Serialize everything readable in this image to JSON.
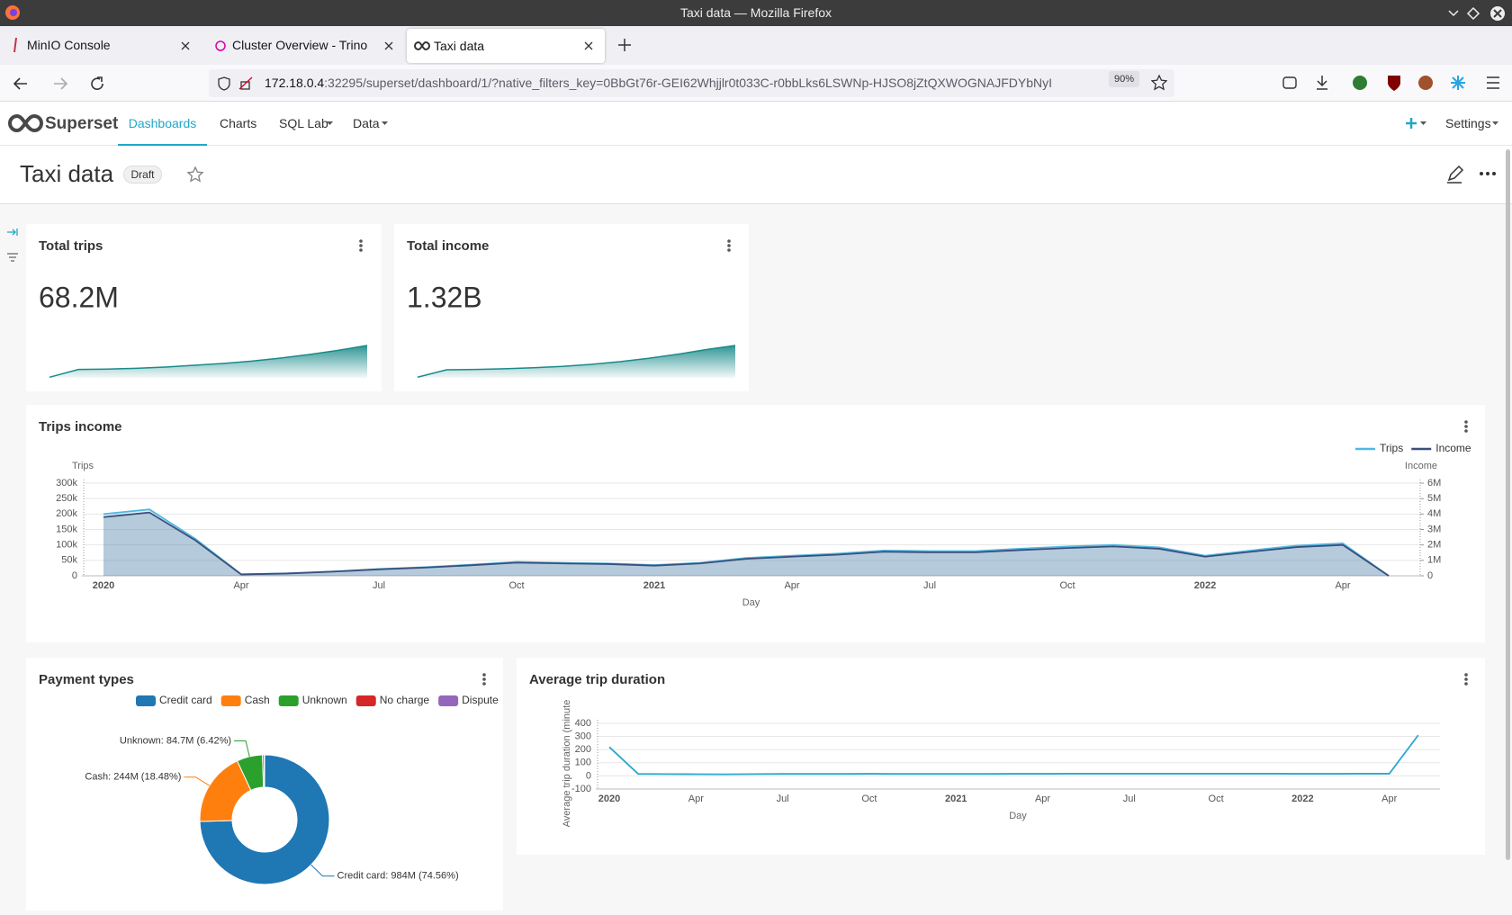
{
  "browser": {
    "window_title": "Taxi data — Mozilla Firefox",
    "tabs": [
      "MinIO Console",
      "Cluster Overview - Trino",
      "Taxi data"
    ],
    "url_host": "172.18.0.4",
    "url_rest": ":32295/superset/dashboard/1/?native_filters_key=0BbGt76r-GEI62Whjjlr0t033C-r0bbLks6LSWNp-HJSO8jZtQXWOGNAJFDYbNyI",
    "zoom": "90%"
  },
  "nav": {
    "brand": "Superset",
    "items": [
      "Dashboards",
      "Charts",
      "SQL Lab",
      "Data"
    ],
    "settings": "Settings"
  },
  "dashboard": {
    "title": "Taxi data",
    "status": "Draft"
  },
  "chart_data": [
    {
      "type": "big_number",
      "title": "Total trips",
      "value": 68200000,
      "value_label": "68.2M",
      "color": "#1a8a8a",
      "trendline": [
        0.5,
        7,
        7.3,
        8,
        9,
        10.5,
        12,
        14,
        16.5,
        19.5,
        23,
        27
      ]
    },
    {
      "type": "big_number",
      "title": "Total income",
      "value": 1320000000,
      "value_label": "1.32B",
      "color": "#1a8a8a",
      "trendline": [
        1,
        12,
        12.5,
        13.5,
        15,
        17,
        20,
        24,
        29,
        35,
        42,
        48
      ]
    },
    {
      "type": "line",
      "title": "Trips income",
      "area": true,
      "grid": true,
      "xlabel": "Day",
      "ylabel": "Trips",
      "y2label": "Income",
      "x": [
        "2020-01",
        "2020-02",
        "2020-03",
        "2020-04",
        "2020-05",
        "2020-06",
        "2020-07",
        "2020-08",
        "2020-09",
        "2020-10",
        "2020-11",
        "2020-12",
        "2021-01",
        "2021-02",
        "2021-03",
        "2021-04",
        "2021-05",
        "2021-06",
        "2021-07",
        "2021-08",
        "2021-09",
        "2021-10",
        "2021-11",
        "2021-12",
        "2022-01",
        "2022-02",
        "2022-03",
        "2022-04",
        "2022-05"
      ],
      "series": [
        {
          "name": "Trips",
          "color": "#4fb8e0",
          "values": [
            200000,
            215000,
            120000,
            5000,
            8000,
            14000,
            22000,
            28000,
            36000,
            45000,
            42000,
            40000,
            35000,
            42000,
            58000,
            65000,
            72000,
            82000,
            80000,
            80000,
            88000,
            95000,
            100000,
            92000,
            65000,
            82000,
            98000,
            105000,
            0
          ]
        },
        {
          "name": "Income",
          "color": "#3b4f7c",
          "axis": "y2",
          "values": [
            3800000,
            4100000,
            2300000,
            90000,
            150000,
            270000,
            420000,
            530000,
            680000,
            850000,
            800000,
            760000,
            660000,
            800000,
            1100000,
            1240000,
            1370000,
            1560000,
            1520000,
            1520000,
            1670000,
            1800000,
            1900000,
            1750000,
            1240000,
            1560000,
            1860000,
            2000000,
            0
          ]
        }
      ],
      "ylim": [
        0,
        300000
      ],
      "yticks": [
        0,
        {
          "value": 50000,
          "label": "50k"
        },
        {
          "value": 100000,
          "label": "100k"
        },
        {
          "value": 150000,
          "label": "150k"
        },
        {
          "value": 200000,
          "label": "200k"
        },
        {
          "value": 250000,
          "label": "250k"
        },
        {
          "value": 300000,
          "label": "300k"
        }
      ],
      "y2lim": [
        0,
        6000000
      ],
      "y2ticks": [
        0,
        {
          "value": 1000000,
          "label": "1M"
        },
        {
          "value": 2000000,
          "label": "2M"
        },
        {
          "value": 3000000,
          "label": "3M"
        },
        {
          "value": 4000000,
          "label": "4M"
        },
        {
          "value": 5000000,
          "label": "5M"
        },
        {
          "value": 6000000,
          "label": "6M"
        }
      ],
      "xticks": [
        {
          "value": "2020-01",
          "label": "2020"
        },
        {
          "value": "2020-04",
          "label": "Apr"
        },
        {
          "value": "2020-07",
          "label": "Jul"
        },
        {
          "value": "2020-10",
          "label": "Oct"
        },
        {
          "value": "2021-01",
          "label": "2021"
        },
        {
          "value": "2021-04",
          "label": "Apr"
        },
        {
          "value": "2021-07",
          "label": "Jul"
        },
        {
          "value": "2021-10",
          "label": "Oct"
        },
        {
          "value": "2022-01",
          "label": "2022"
        },
        {
          "value": "2022-04",
          "label": "Apr"
        }
      ],
      "legend": "top-right"
    },
    {
      "type": "pie",
      "title": "Payment types",
      "donut": true,
      "categories": [
        "Credit card",
        "Cash",
        "Unknown",
        "No charge",
        "Dispute"
      ],
      "values": [
        984000000,
        244000000,
        84700000,
        5300000,
        1700000
      ],
      "value_labels": [
        "Credit card: 984M (74.56%)",
        "Cash: 244M (18.48%)",
        "Unknown: 84.7M (6.42%)",
        null,
        null
      ],
      "colors": [
        "#1f77b4",
        "#ff7f0e",
        "#2ca02c",
        "#d62728",
        "#9467bd"
      ],
      "legend": "top"
    },
    {
      "type": "line",
      "title": "Average trip duration",
      "area": false,
      "grid": true,
      "xlabel": "Day",
      "ylabel": "Average trip duration (minute",
      "x": [
        "2020-01",
        "2020-02",
        "2020-03",
        "2020-04",
        "2020-05",
        "2020-06",
        "2020-07",
        "2020-08",
        "2020-09",
        "2020-10",
        "2020-11",
        "2020-12",
        "2021-01",
        "2021-02",
        "2021-03",
        "2021-04",
        "2021-05",
        "2021-06",
        "2021-07",
        "2021-08",
        "2021-09",
        "2021-10",
        "2021-11",
        "2021-12",
        "2022-01",
        "2022-02",
        "2022-03",
        "2022-04",
        "2022-05"
      ],
      "series": [
        {
          "name": "Average trip duration",
          "color": "#2aa8cf",
          "values": [
            220,
            15,
            14,
            13,
            12,
            14,
            15,
            15,
            15,
            16,
            15,
            15,
            15,
            15,
            16,
            16,
            17,
            17,
            17,
            17,
            17,
            17,
            17,
            17,
            16,
            16,
            17,
            17,
            310
          ]
        }
      ],
      "ylim": [
        -100,
        400
      ],
      "yticks": [
        -100,
        0,
        100,
        200,
        300,
        400
      ],
      "xticks": [
        {
          "value": "2020-01",
          "label": "2020"
        },
        {
          "value": "2020-04",
          "label": "Apr"
        },
        {
          "value": "2020-07",
          "label": "Jul"
        },
        {
          "value": "2020-10",
          "label": "Oct"
        },
        {
          "value": "2021-01",
          "label": "2021"
        },
        {
          "value": "2021-04",
          "label": "Apr"
        },
        {
          "value": "2021-07",
          "label": "Jul"
        },
        {
          "value": "2021-10",
          "label": "Oct"
        },
        {
          "value": "2022-01",
          "label": "2022"
        },
        {
          "value": "2022-04",
          "label": "Apr"
        }
      ]
    }
  ]
}
